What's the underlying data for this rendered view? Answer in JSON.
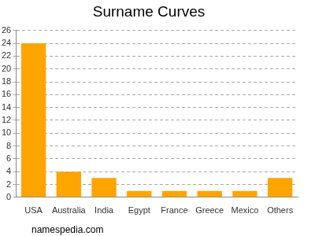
{
  "chart_data": {
    "type": "bar",
    "title": "Surname Curves",
    "categories": [
      "USA",
      "Australia",
      "India",
      "Egypt",
      "France",
      "Greece",
      "Mexico",
      "Others"
    ],
    "values": [
      24,
      4,
      3,
      1,
      1,
      1,
      1,
      3
    ],
    "color": "#ffa500",
    "ylim": [
      0,
      26
    ],
    "yticks": [
      0,
      2,
      4,
      6,
      8,
      10,
      12,
      14,
      16,
      18,
      20,
      22,
      24,
      26
    ],
    "grid": true,
    "annotations": [
      "namespedia.com"
    ]
  }
}
